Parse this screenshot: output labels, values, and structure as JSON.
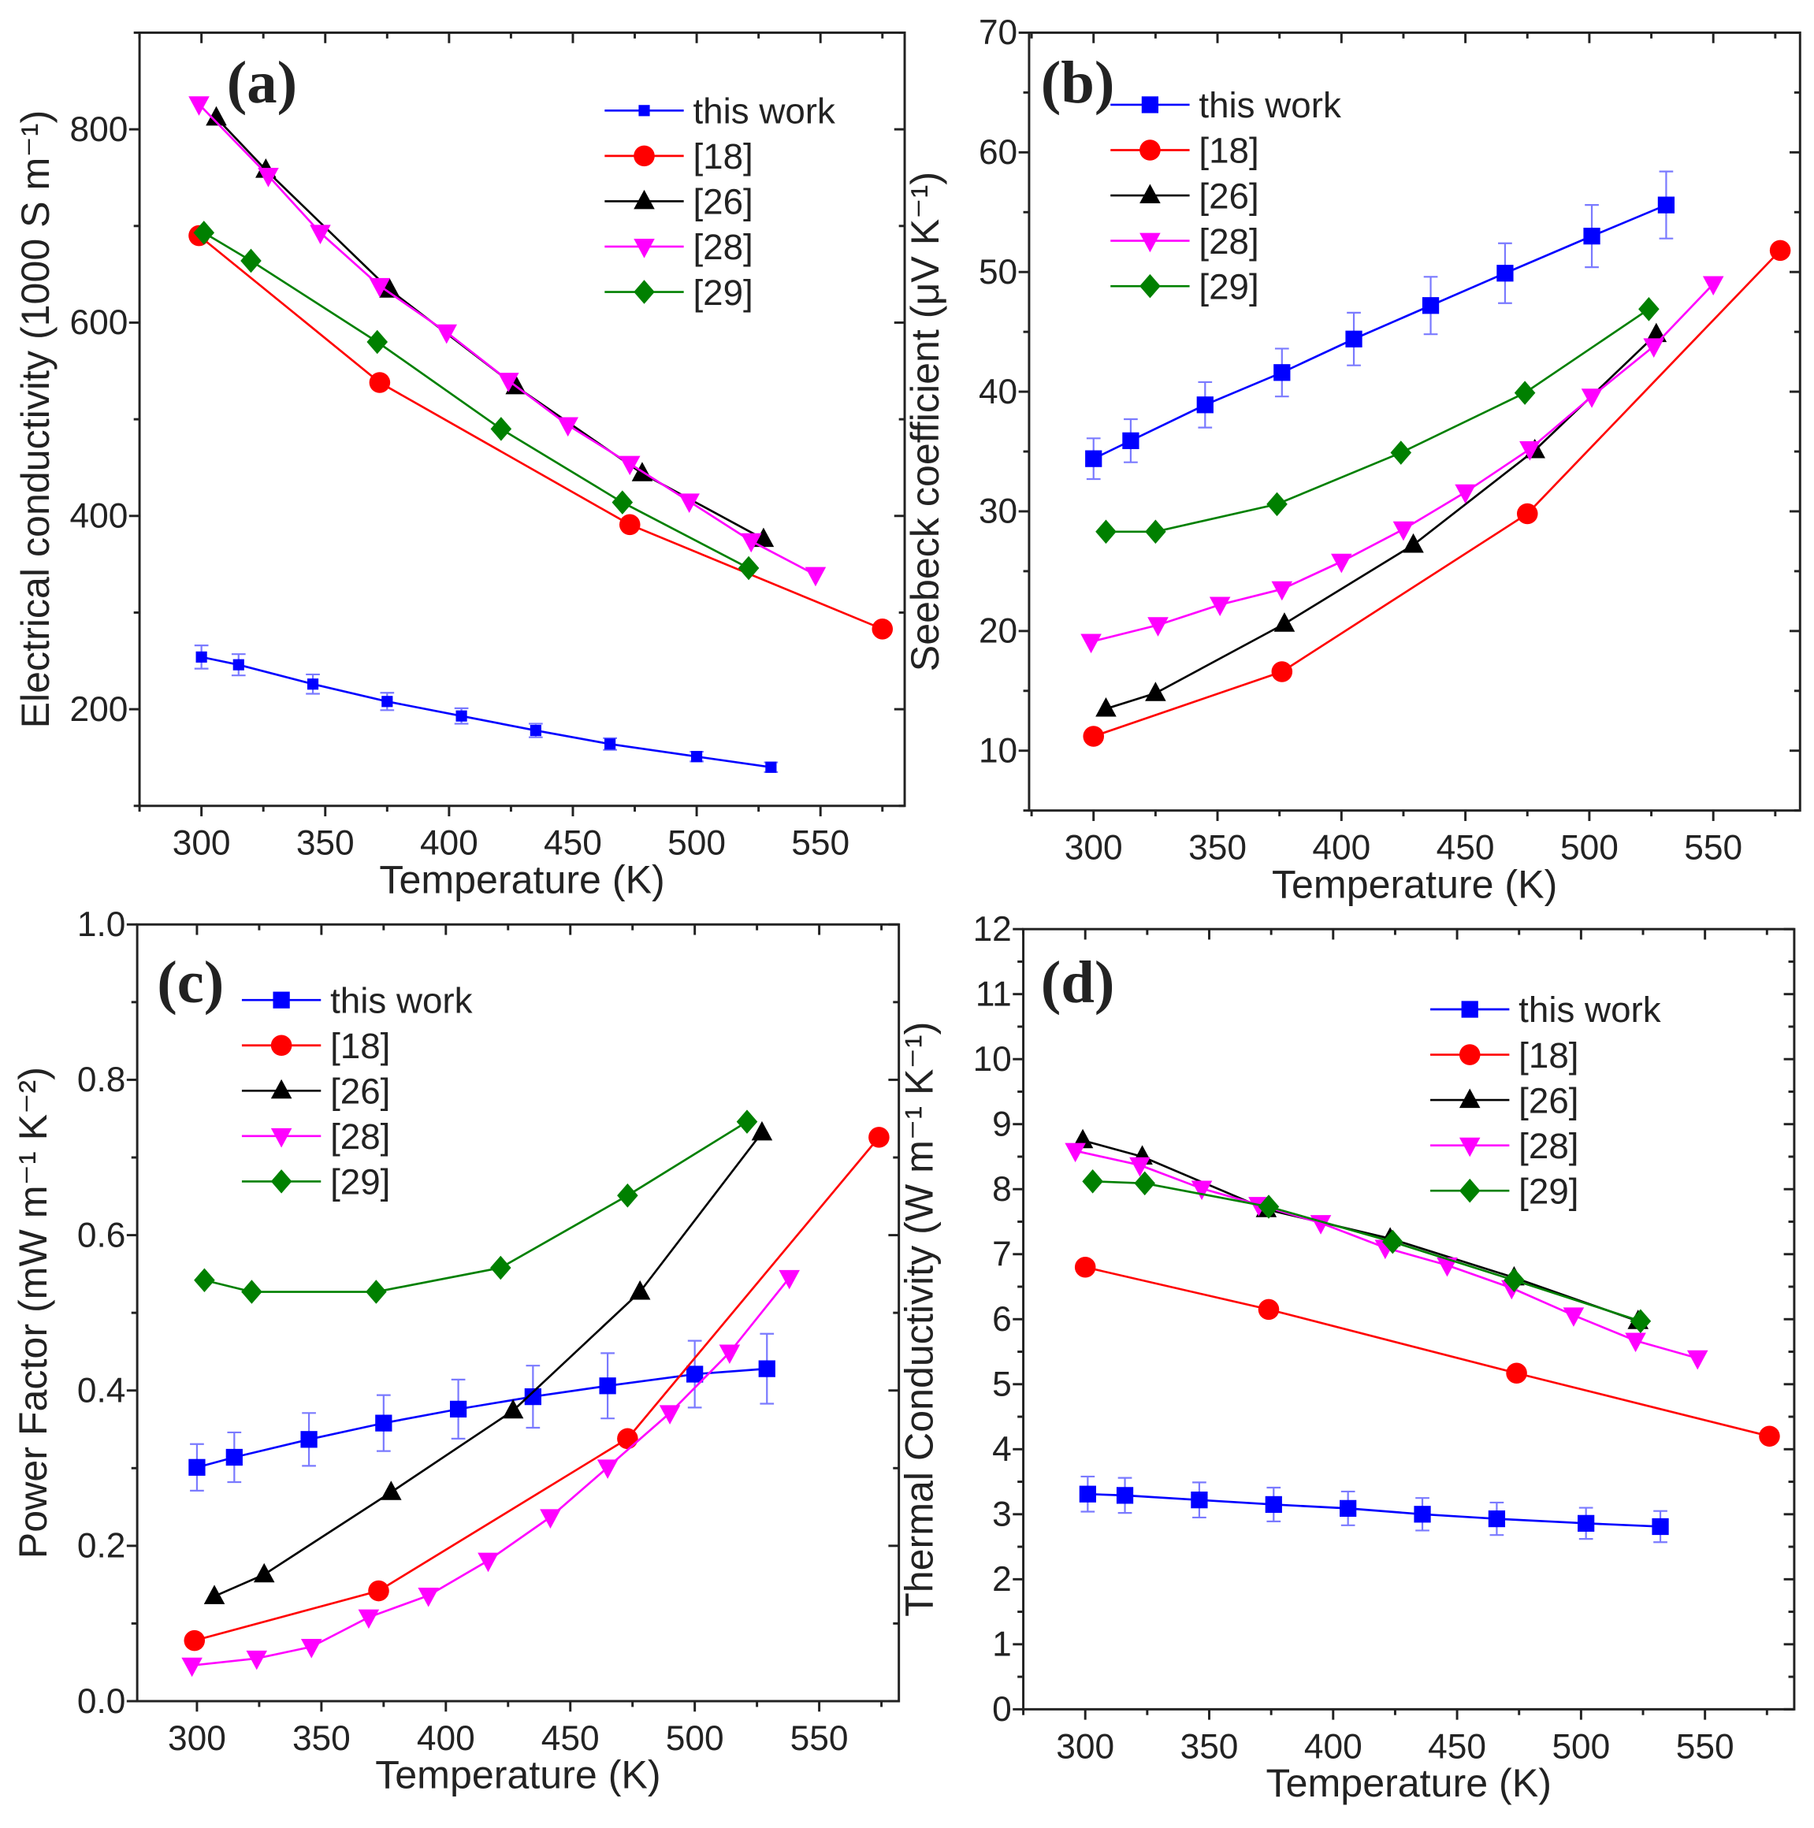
{
  "styles": {
    "this work": {
      "color": "#0000FF",
      "marker": "square"
    },
    "[18]": {
      "color": "#FF0000",
      "marker": "circle"
    },
    "[26]": {
      "color": "#000000",
      "marker": "triangle-up"
    },
    "[28]": {
      "color": "#FF00FF",
      "marker": "triangle-down"
    },
    "[29]": {
      "color": "#008000",
      "marker": "diamond"
    }
  },
  "chart_data": [
    {
      "type": "line",
      "panel": "(a)",
      "xlabel": "Temperature (K)",
      "ylabel": "Electrical conductivity (1000 S m⁻¹)",
      "xlim": [
        275,
        584
      ],
      "ylim": [
        100,
        900
      ],
      "xticks": [
        300,
        350,
        400,
        450,
        500,
        550
      ],
      "yticks": [
        200,
        400,
        600,
        800
      ],
      "legend": "top-right",
      "series": [
        {
          "name": "this work",
          "x": [
            300,
            315,
            345,
            375,
            405,
            435,
            465,
            500,
            530
          ],
          "y": [
            254,
            246,
            226,
            208,
            193,
            178,
            164,
            151,
            140
          ],
          "error": [
            12,
            11,
            10,
            9,
            8,
            7,
            6,
            5,
            5
          ]
        },
        {
          "name": "[18]",
          "x": [
            299,
            372,
            473,
            575
          ],
          "y": [
            690,
            538,
            391,
            283
          ]
        },
        {
          "name": "[26]",
          "x": [
            306,
            326,
            376,
            427,
            478,
            527
          ],
          "y": [
            812,
            758,
            634,
            534,
            444,
            376
          ]
        },
        {
          "name": "[28]",
          "x": [
            299,
            327,
            348,
            372,
            399,
            424,
            448,
            473,
            497,
            522,
            548
          ],
          "y": [
            826,
            752,
            693,
            638,
            590,
            540,
            494,
            454,
            415,
            374,
            339
          ]
        },
        {
          "name": "[29]",
          "x": [
            301,
            320,
            371,
            421,
            470,
            521
          ],
          "y": [
            693,
            664,
            580,
            490,
            414,
            346
          ]
        }
      ]
    },
    {
      "type": "line",
      "panel": "(b)",
      "xlabel": "Temperature (K)",
      "ylabel": "Seebeck coefficient (μV K⁻¹)",
      "xlim": [
        274,
        585
      ],
      "ylim": [
        5,
        70
      ],
      "xticks": [
        300,
        350,
        400,
        450,
        500,
        550
      ],
      "yticks": [
        10,
        20,
        30,
        40,
        50,
        60,
        70
      ],
      "legend": "top-left",
      "series": [
        {
          "name": "this work",
          "x": [
            300,
            315,
            345,
            376,
            405,
            436,
            466,
            501,
            531
          ],
          "y": [
            34.4,
            35.9,
            38.9,
            41.6,
            44.4,
            47.2,
            49.9,
            53.0,
            55.6
          ],
          "error": [
            1.7,
            1.8,
            1.9,
            2.0,
            2.2,
            2.4,
            2.5,
            2.6,
            2.8
          ]
        },
        {
          "name": "[18]",
          "x": [
            300,
            376,
            475,
            577
          ],
          "y": [
            11.2,
            16.6,
            29.8,
            51.8
          ]
        },
        {
          "name": "[26]",
          "x": [
            305,
            325,
            377,
            429,
            478,
            527
          ],
          "y": [
            13.5,
            14.8,
            20.6,
            27.2,
            35.1,
            44.8
          ]
        },
        {
          "name": "[28]",
          "x": [
            299,
            326,
            351,
            376,
            400,
            425,
            450,
            476,
            501,
            526,
            550
          ],
          "y": [
            19.1,
            20.5,
            22.2,
            23.5,
            25.8,
            28.5,
            31.6,
            35.2,
            39.6,
            43.8,
            49.0
          ]
        },
        {
          "name": "[29]",
          "x": [
            305,
            325,
            374,
            424,
            474,
            524
          ],
          "y": [
            28.3,
            28.3,
            30.6,
            34.9,
            39.9,
            46.9
          ]
        }
      ]
    },
    {
      "type": "line",
      "panel": "(c)",
      "xlabel": "Temperature (K)",
      "ylabel": "Power Factor (mW m⁻¹ K⁻²)",
      "xlim": [
        276,
        582
      ],
      "ylim": [
        0,
        1.0
      ],
      "xticks": [
        300,
        350,
        400,
        450,
        500,
        550
      ],
      "yticks": [
        "0.0",
        "0.2",
        "0.4",
        "0.6",
        "0.8",
        "1.0"
      ],
      "legend": "top-left",
      "series": [
        {
          "name": "this work",
          "x": [
            300,
            315,
            345,
            375,
            405,
            435,
            465,
            500,
            529
          ],
          "y": [
            0.301,
            0.314,
            0.337,
            0.358,
            0.376,
            0.392,
            0.406,
            0.421,
            0.428
          ],
          "error": [
            0.03,
            0.032,
            0.034,
            0.036,
            0.038,
            0.04,
            0.042,
            0.043,
            0.045
          ]
        },
        {
          "name": "[18]",
          "x": [
            299,
            373,
            473,
            574
          ],
          "y": [
            0.078,
            0.142,
            0.338,
            0.726
          ]
        },
        {
          "name": "[26]",
          "x": [
            307,
            327,
            378,
            427,
            478,
            527
          ],
          "y": [
            0.135,
            0.163,
            0.269,
            0.374,
            0.527,
            0.732
          ]
        },
        {
          "name": "[28]",
          "x": [
            298,
            324,
            346,
            369,
            393,
            417,
            442,
            465,
            490,
            514,
            538
          ],
          "y": [
            0.046,
            0.055,
            0.07,
            0.108,
            0.136,
            0.181,
            0.237,
            0.301,
            0.371,
            0.449,
            0.545
          ]
        },
        {
          "name": "[29]",
          "x": [
            303,
            322,
            372,
            422,
            473,
            521
          ],
          "y": [
            0.542,
            0.527,
            0.527,
            0.558,
            0.651,
            0.746
          ]
        }
      ]
    },
    {
      "type": "line",
      "panel": "(d)",
      "xlabel": "Temperature (K)",
      "ylabel": "Thermal Conductivity (W m⁻¹ K⁻¹)",
      "xlim": [
        275,
        586
      ],
      "ylim": [
        0,
        12
      ],
      "xticks": [
        300,
        350,
        400,
        450,
        500,
        550
      ],
      "yticks": [
        0,
        1,
        2,
        3,
        4,
        5,
        6,
        7,
        8,
        9,
        10,
        11,
        12
      ],
      "legend": "top-right",
      "series": [
        {
          "name": "this work",
          "x": [
            301,
            316,
            346,
            376,
            406,
            436,
            466,
            502,
            532
          ],
          "y": [
            3.31,
            3.29,
            3.22,
            3.15,
            3.09,
            3.0,
            2.93,
            2.86,
            2.81
          ],
          "error": [
            0.27,
            0.27,
            0.27,
            0.26,
            0.26,
            0.25,
            0.25,
            0.24,
            0.24
          ]
        },
        {
          "name": "[18]",
          "x": [
            300,
            374,
            474,
            576
          ],
          "y": [
            6.8,
            6.15,
            5.17,
            4.2
          ]
        },
        {
          "name": "[26]",
          "x": [
            299,
            323,
            373,
            423,
            473,
            523
          ],
          "y": [
            8.75,
            8.5,
            7.69,
            7.24,
            6.64,
            5.97
          ]
        },
        {
          "name": "[28]",
          "x": [
            296,
            322,
            347,
            370,
            395,
            421,
            446,
            472,
            497,
            522,
            547
          ],
          "y": [
            8.59,
            8.37,
            8.01,
            7.76,
            7.48,
            7.1,
            6.83,
            6.48,
            6.06,
            5.67,
            5.4
          ]
        },
        {
          "name": "[29]",
          "x": [
            303,
            324,
            374,
            424,
            473,
            524
          ],
          "y": [
            8.12,
            8.09,
            7.73,
            7.19,
            6.6,
            5.97
          ]
        }
      ]
    }
  ]
}
